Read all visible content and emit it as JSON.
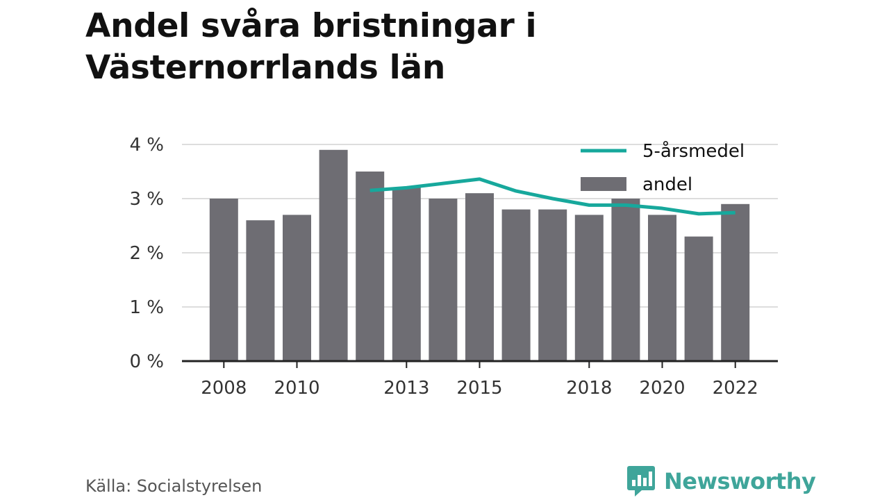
{
  "header": {
    "title_line1": "Andel svåra bristningar i",
    "title_line2": "Västernorrlands län"
  },
  "footer": {
    "source": "Källa: Socialstyrelsen",
    "brand": "Newsworthy"
  },
  "colors": {
    "bar": "#6e6d73",
    "line": "#17a89c",
    "grid": "#dddddd",
    "axis": "#222222",
    "text": "#333333",
    "brand": "#3fa59a"
  },
  "chart_data": {
    "type": "bar",
    "categories": [
      "2008",
      "2009",
      "2010",
      "2011",
      "2012",
      "2013",
      "2014",
      "2015",
      "2016",
      "2017",
      "2018",
      "2019",
      "2020",
      "2021",
      "2022"
    ],
    "x_tick_labels": [
      "2008",
      "2010",
      "2013",
      "2015",
      "2018",
      "2020",
      "2022"
    ],
    "y_ticks": [
      0,
      1,
      2,
      3,
      4
    ],
    "y_tick_labels": [
      "0 %",
      "1 %",
      "2 %",
      "3 %",
      "4 %"
    ],
    "ylim": [
      0,
      4
    ],
    "grid": true,
    "legend_position": "top-right",
    "series": [
      {
        "name": "andel",
        "type": "bar",
        "values": [
          3.0,
          2.6,
          2.7,
          3.9,
          3.5,
          3.2,
          3.0,
          3.1,
          2.8,
          2.8,
          2.7,
          3.0,
          2.7,
          2.3,
          2.9
        ]
      },
      {
        "name": "5-årsmedel",
        "type": "line",
        "values": [
          null,
          null,
          null,
          null,
          3.15,
          3.2,
          3.28,
          3.36,
          3.14,
          3.0,
          2.88,
          2.88,
          2.82,
          2.72,
          2.74
        ]
      }
    ],
    "legend": [
      {
        "name": "5-årsmedel",
        "kind": "line"
      },
      {
        "name": "andel",
        "kind": "bar"
      }
    ]
  }
}
